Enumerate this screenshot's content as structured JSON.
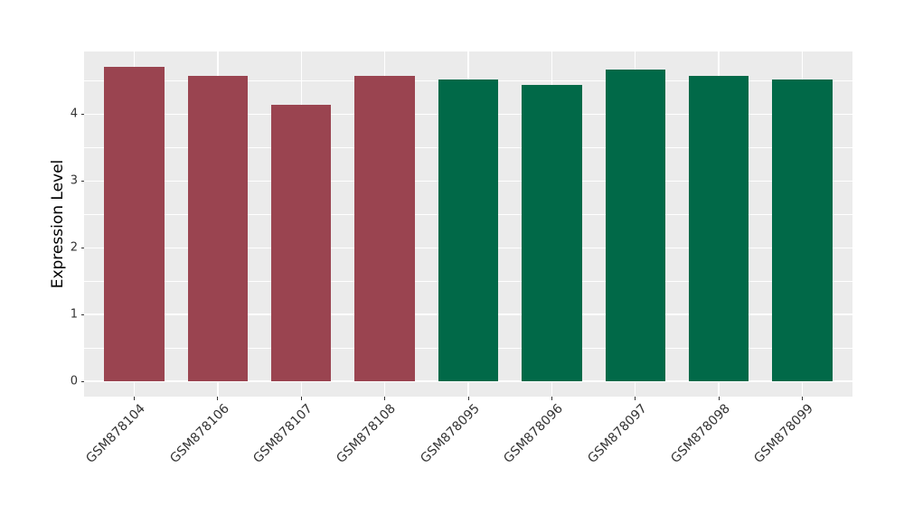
{
  "figure": {
    "background": "#FFFFFF"
  },
  "chart_data": {
    "type": "bar",
    "title": "",
    "xlabel": "",
    "ylabel": "Expression Level",
    "categories": [
      "GSM878104",
      "GSM878106",
      "GSM878107",
      "GSM878108",
      "GSM878095",
      "GSM878096",
      "GSM878097",
      "GSM878098",
      "GSM878099"
    ],
    "values": [
      4.71,
      4.58,
      4.14,
      4.57,
      4.52,
      4.44,
      4.67,
      4.57,
      4.52
    ],
    "bar_colors": [
      "#9A4450",
      "#9A4450",
      "#9A4450",
      "#9A4450",
      "#016948",
      "#016948",
      "#016948",
      "#016948",
      "#016948"
    ],
    "group_colors": {
      "left_group": "#9A4450",
      "right_group": "#016948"
    },
    "y_ticks": [
      0,
      1,
      2,
      3,
      4
    ],
    "y_minor_ticks": [
      0.5,
      1.5,
      2.5,
      3.5,
      4.5
    ],
    "ylim": [
      -0.23,
      4.94
    ],
    "x_label_rotation_deg": 45,
    "legend": "none",
    "grid": "major+minor",
    "panel_background": "#EBEBEB",
    "grid_color": "#FFFFFF",
    "tick_color": "#333333",
    "axis_text_color": "#333333",
    "axis_title_color": "#000000"
  }
}
